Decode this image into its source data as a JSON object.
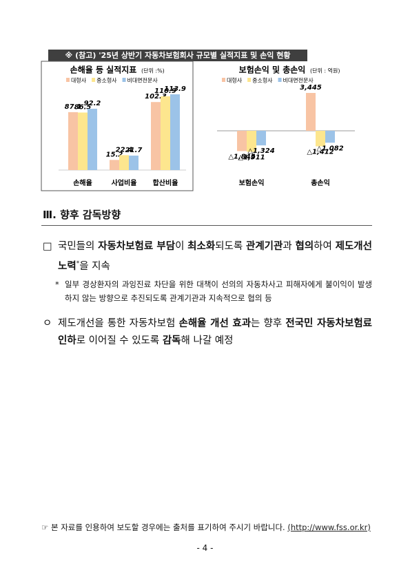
{
  "figure_title": "※ (참고) '25년 상반기 자동차보험회사 규모별 실적지표 및 손익 현황",
  "chart_data": [
    {
      "type": "bar",
      "title": "손해율 등 실적지표",
      "unit": "(단위 :%)",
      "categories": [
        "손해율",
        "사업비율",
        "합산비율"
      ],
      "series": [
        {
          "name": "대형사",
          "color": "#f8c4a4",
          "values": [
            87.1,
            15.2,
            102.3
          ]
        },
        {
          "name": "중소형사",
          "color": "#fde68e",
          "values": [
            86.5,
            22.4,
            110.9
          ]
        },
        {
          "name": "비대면전문사",
          "color": "#9cc3e8",
          "values": [
            92.2,
            21.7,
            113.9
          ]
        }
      ]
    },
    {
      "type": "bar",
      "title": "보험손익 및 총손익",
      "unit": "(단위 : 억원)",
      "categories": [
        "보험손익",
        "총손익"
      ],
      "series": [
        {
          "name": "대형사",
          "color": "#f8c4a4",
          "values": [
            -1845,
            3445
          ],
          "value_labels": [
            "△1,845",
            "3,445"
          ]
        },
        {
          "name": "중소형사",
          "color": "#fde68e",
          "values": [
            -1911,
            -1412
          ],
          "value_labels": [
            "△1,911",
            "△1,412"
          ]
        },
        {
          "name": "비대면전문사",
          "color": "#9cc3e8",
          "values": [
            -1324,
            -1082
          ],
          "value_labels": [
            "△1,324",
            "△1,082"
          ]
        }
      ]
    }
  ],
  "section_heading": "Ⅲ. 향후 감독방향",
  "paragraphs": [
    {
      "marker": "□",
      "runs": [
        {
          "text": "국민들의 "
        },
        {
          "text": "자동차보험료 부담",
          "bold": true
        },
        {
          "text": "이 "
        },
        {
          "text": "최소화",
          "bold": true
        },
        {
          "text": "되도록 "
        },
        {
          "text": "관계기관",
          "bold": true
        },
        {
          "text": "과 "
        },
        {
          "text": "협의",
          "bold": true
        },
        {
          "text": "하여 "
        },
        {
          "text": "제도개선 노력",
          "bold": true
        },
        {
          "text": "*",
          "sup": true
        },
        {
          "text": "을 지속"
        }
      ]
    },
    {
      "marker": "*",
      "runs": [
        {
          "text": "일부 경상환자의 과잉진료 차단을 위한 대책이 선의의 자동차사고 피해자에게 불이익이 발생하지 않는 방향으로 추진되도록 관계기관과 지속적으로 협의 등"
        }
      ]
    },
    {
      "marker": "ㅇ",
      "runs": [
        {
          "text": "제도개선을 통한 자동차보험 "
        },
        {
          "text": "손해율 개선 효과",
          "bold": true
        },
        {
          "text": "는 향후 "
        },
        {
          "text": "전국민 자동차보험료 인하",
          "bold": true
        },
        {
          "text": "로 이어질 수 있도록 "
        },
        {
          "text": "감독",
          "bold": true
        },
        {
          "text": "해 나갈 예정"
        }
      ]
    }
  ],
  "footer": {
    "marker": "☞",
    "text": "본 자료를 인용하여 보도할 경우에는 출처를 표기하여 주시기 바랍니다.",
    "link": "(http://www.fss.or.kr)"
  },
  "page_number": "- 4 -"
}
